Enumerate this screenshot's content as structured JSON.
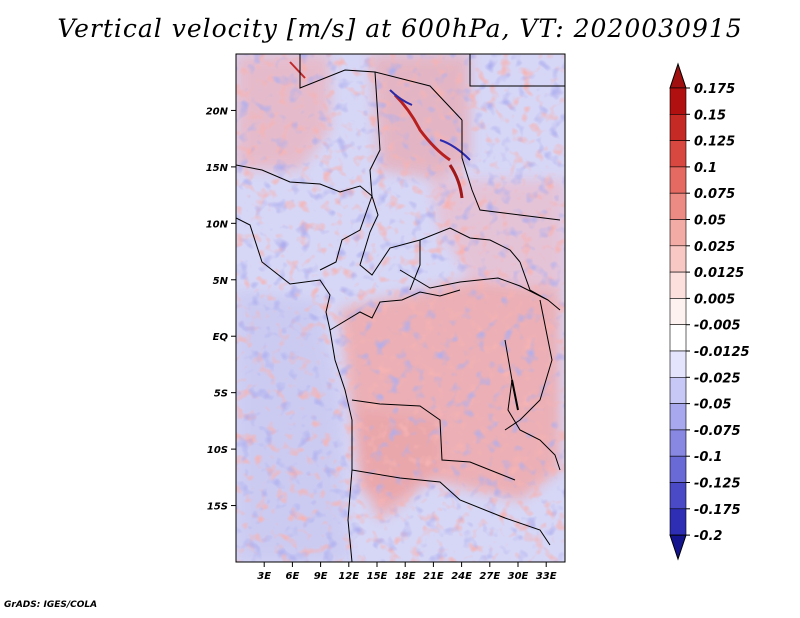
{
  "title": "Vertical velocity [m/s] at 600hPa, VT: 2020030915",
  "credit": "GrADS: IGES/COLA",
  "map": {
    "lat_range": [
      -20,
      25
    ],
    "lon_range": [
      0,
      35
    ],
    "lat_ticks": [
      {
        "value": 20,
        "label": "20N"
      },
      {
        "value": 15,
        "label": "15N"
      },
      {
        "value": 10,
        "label": "10N"
      },
      {
        "value": 5,
        "label": "5N"
      },
      {
        "value": 0,
        "label": "EQ"
      },
      {
        "value": -5,
        "label": "5S"
      },
      {
        "value": -10,
        "label": "10S"
      },
      {
        "value": -15,
        "label": "15S"
      }
    ],
    "lon_ticks": [
      {
        "value": 3,
        "label": "3E"
      },
      {
        "value": 6,
        "label": "6E"
      },
      {
        "value": 9,
        "label": "9E"
      },
      {
        "value": 12,
        "label": "12E"
      },
      {
        "value": 15,
        "label": "15E"
      },
      {
        "value": 18,
        "label": "18E"
      },
      {
        "value": 21,
        "label": "21E"
      },
      {
        "value": 24,
        "label": "24E"
      },
      {
        "value": 27,
        "label": "27E"
      },
      {
        "value": 30,
        "label": "30E"
      },
      {
        "value": 33,
        "label": "33E"
      }
    ]
  },
  "colorbar": {
    "levels": [
      {
        "label": "0.175",
        "color": "#b01010"
      },
      {
        "label": "0.15",
        "color": "#c52a24"
      },
      {
        "label": "0.125",
        "color": "#d84840"
      },
      {
        "label": "0.1",
        "color": "#e46a62"
      },
      {
        "label": "0.075",
        "color": "#ec8a84"
      },
      {
        "label": "0.05",
        "color": "#f3aba6"
      },
      {
        "label": "0.025",
        "color": "#f8c8c4"
      },
      {
        "label": "0.0125",
        "color": "#fce0de"
      },
      {
        "label": "0.005",
        "color": "#fef2f1"
      },
      {
        "label": "-0.005",
        "color": "#ffffff"
      },
      {
        "label": "-0.0125",
        "color": "#e4e4fc"
      },
      {
        "label": "-0.025",
        "color": "#c8c8f6"
      },
      {
        "label": "-0.05",
        "color": "#a8a8ee"
      },
      {
        "label": "-0.075",
        "color": "#8888e2"
      },
      {
        "label": "-0.1",
        "color": "#6a6ad6"
      },
      {
        "label": "-0.125",
        "color": "#4a4ac6"
      },
      {
        "label": "-0.175",
        "color": "#2e2eb4"
      },
      {
        "label": "-0.2",
        "color": "#1a1a9e"
      }
    ],
    "top_extend_color": "#a01010",
    "bottom_extend_color": "#14148e"
  }
}
